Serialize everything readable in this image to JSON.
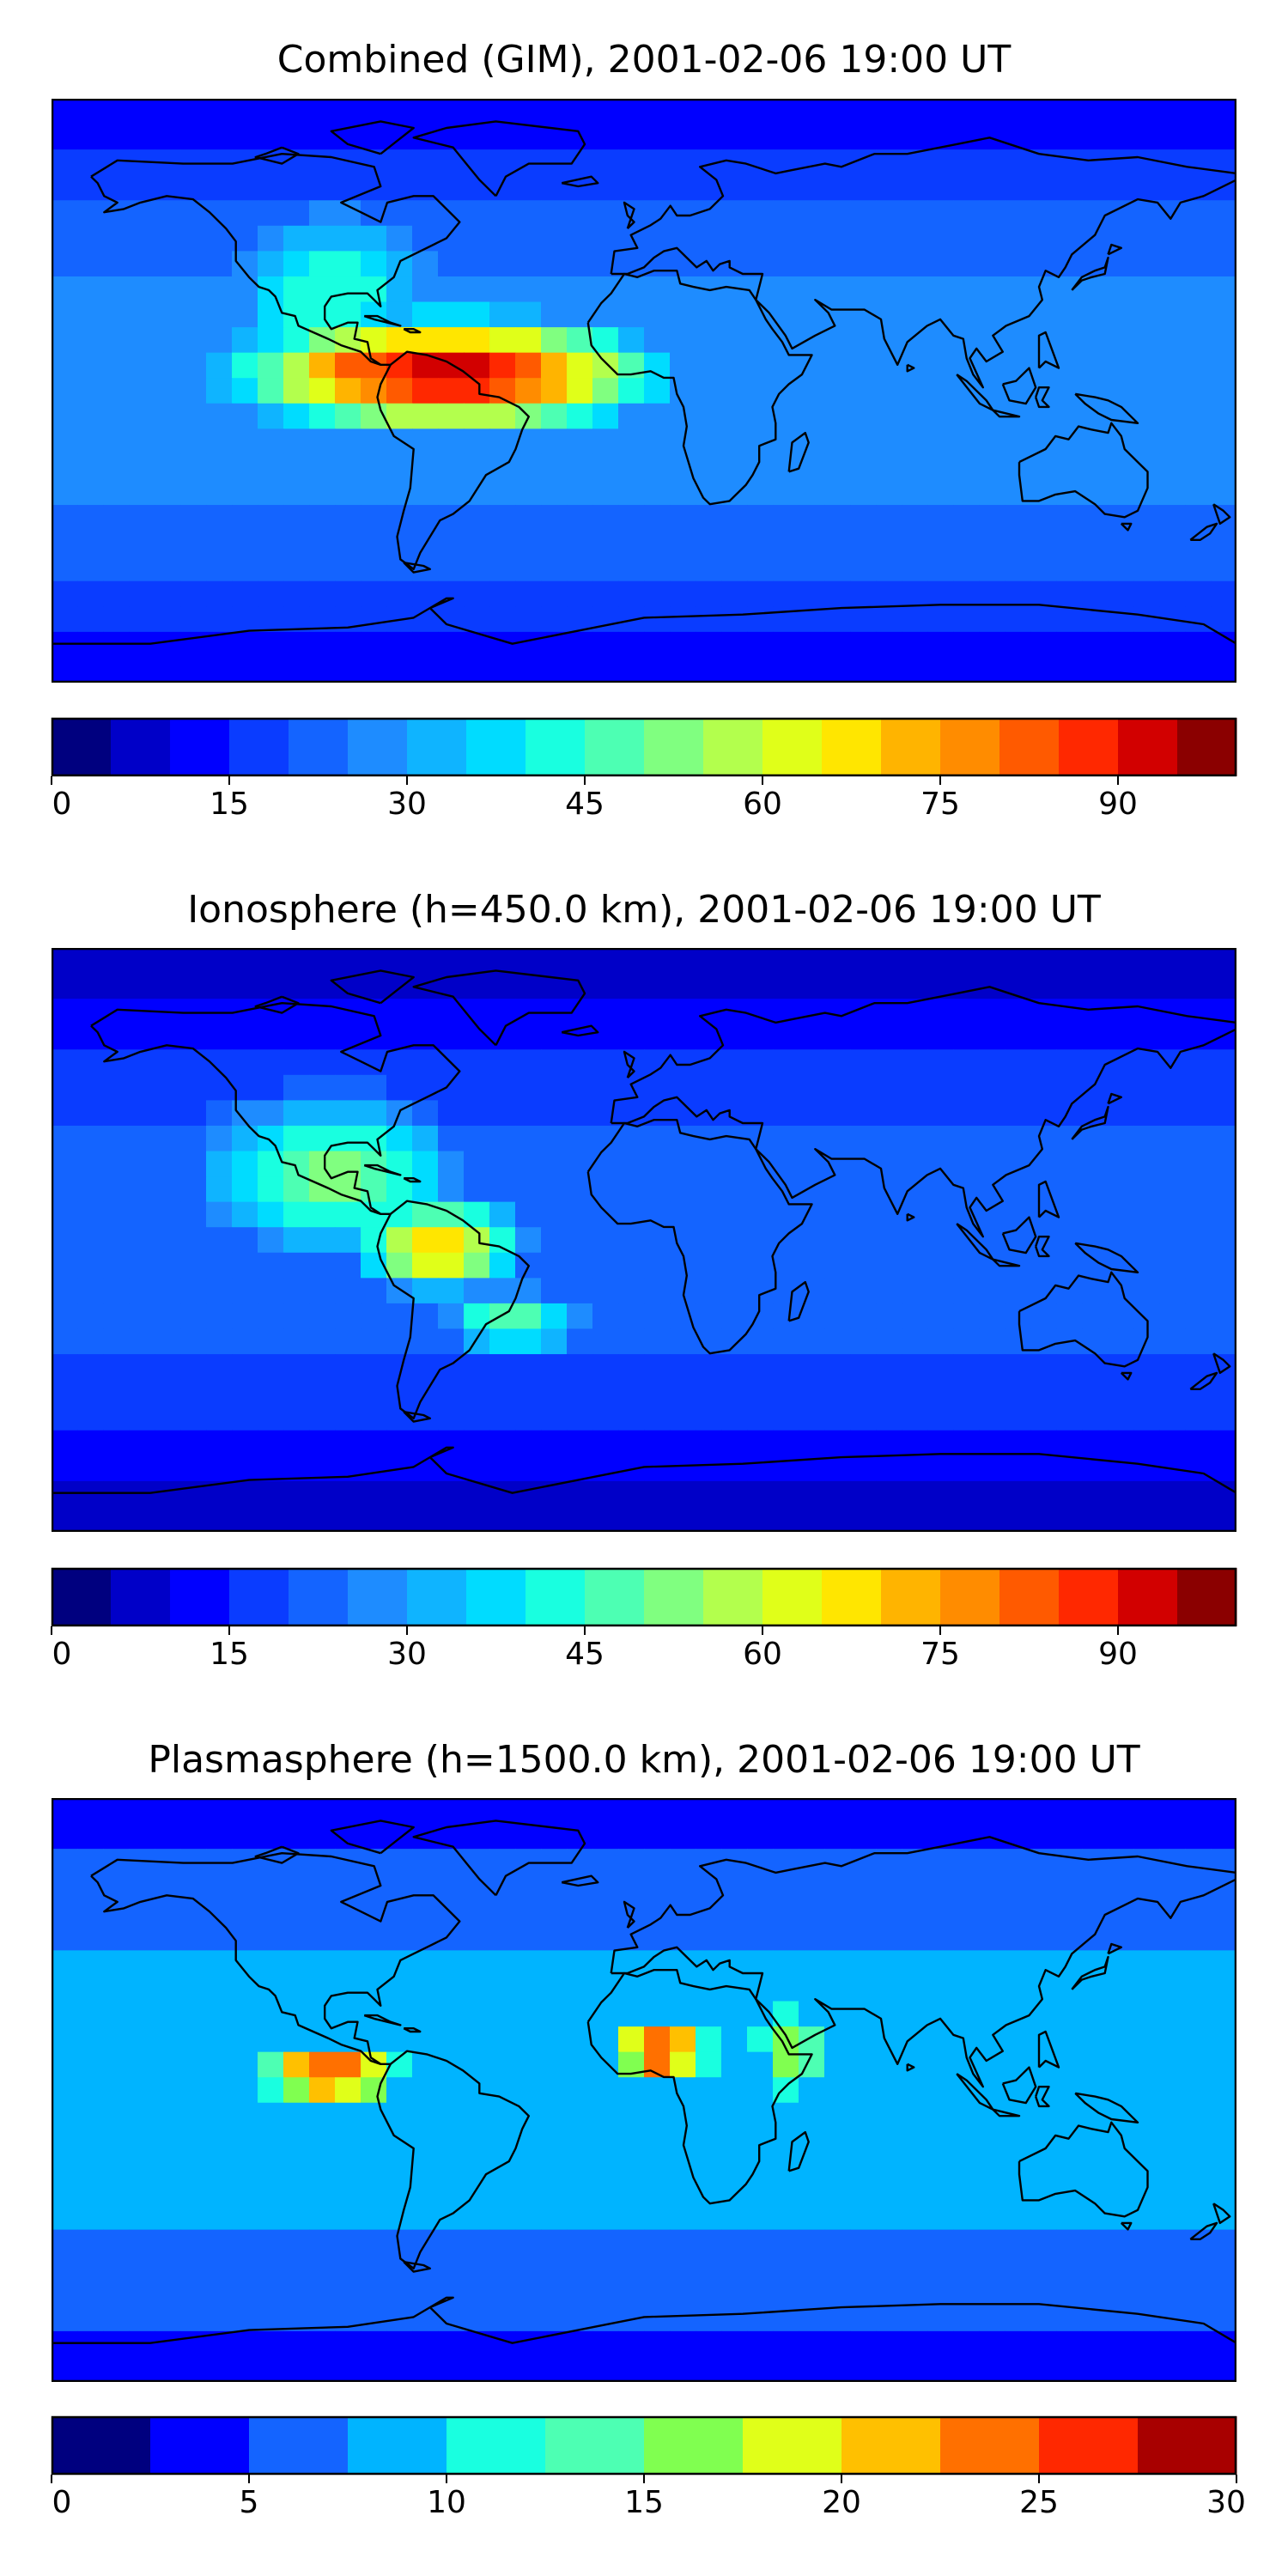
{
  "panels": [
    {
      "title": "Combined (GIM), 2001-02-06 19:00 UT",
      "colorbar": {
        "min": 0,
        "max": 100,
        "ticks": [
          0,
          15,
          30,
          45,
          60,
          75,
          90
        ],
        "colors": [
          "#00007f",
          "#0000c8",
          "#0000ff",
          "#0a3cff",
          "#1464ff",
          "#1e8cff",
          "#0fb4ff",
          "#00dcff",
          "#19ffe0",
          "#4dffb3",
          "#80ff80",
          "#b3ff4d",
          "#e0ff19",
          "#ffe600",
          "#ffb400",
          "#ff8c00",
          "#ff5a00",
          "#ff2800",
          "#d20000",
          "#8b0000"
        ]
      },
      "features": [
        {
          "lon": -60,
          "lat": 5,
          "value": 95,
          "sx": 50,
          "sy": 14
        },
        {
          "lon": -85,
          "lat": 8,
          "value": 85,
          "sx": 25,
          "sy": 8
        },
        {
          "lon": -30,
          "lat": 2,
          "value": 72,
          "sx": 18,
          "sy": 8
        },
        {
          "lon": -95,
          "lat": 30,
          "value": 45,
          "sx": 30,
          "sy": 25
        }
      ]
    },
    {
      "title": "Ionosphere  (h=450.0 km), 2001-02-06 19:00 UT",
      "colorbar": {
        "min": 0,
        "max": 100,
        "ticks": [
          0,
          15,
          30,
          45,
          60,
          75,
          90
        ],
        "colors": [
          "#00007f",
          "#0000c8",
          "#0000ff",
          "#0a3cff",
          "#1464ff",
          "#1e8cff",
          "#0fb4ff",
          "#00dcff",
          "#19ffe0",
          "#4dffb3",
          "#80ff80",
          "#b3ff4d",
          "#e0ff19",
          "#ffe600",
          "#ffb400",
          "#ff8c00",
          "#ff5a00",
          "#ff2800",
          "#d20000",
          "#8b0000"
        ]
      },
      "features": [
        {
          "lon": -62,
          "lat": -2,
          "value": 72,
          "sx": 20,
          "sy": 12
        },
        {
          "lon": -95,
          "lat": 20,
          "value": 52,
          "sx": 35,
          "sy": 22
        },
        {
          "lon": -40,
          "lat": -25,
          "value": 48,
          "sx": 20,
          "sy": 10
        }
      ]
    },
    {
      "title": "Plasmasphere (h=1500.0 km), 2001-02-06 19:00 UT",
      "colorbar": {
        "min": 0,
        "max": 30,
        "ticks": [
          0,
          5,
          10,
          15,
          20,
          25,
          30
        ],
        "colors": [
          "#00007f",
          "#0000ff",
          "#1464ff",
          "#00b4ff",
          "#19ffe0",
          "#4dffb3",
          "#80ff50",
          "#e0ff19",
          "#ffc000",
          "#ff7000",
          "#ff2800",
          "#a80000"
        ]
      },
      "features": [
        {
          "lon": -95,
          "lat": 5,
          "value": 27,
          "sx": 18,
          "sy": 7
        },
        {
          "lon": 5,
          "lat": 12,
          "value": 27,
          "sx": 12,
          "sy": 8
        },
        {
          "lon": 45,
          "lat": 12,
          "value": 18,
          "sx": 10,
          "sy": 12
        }
      ]
    }
  ]
}
